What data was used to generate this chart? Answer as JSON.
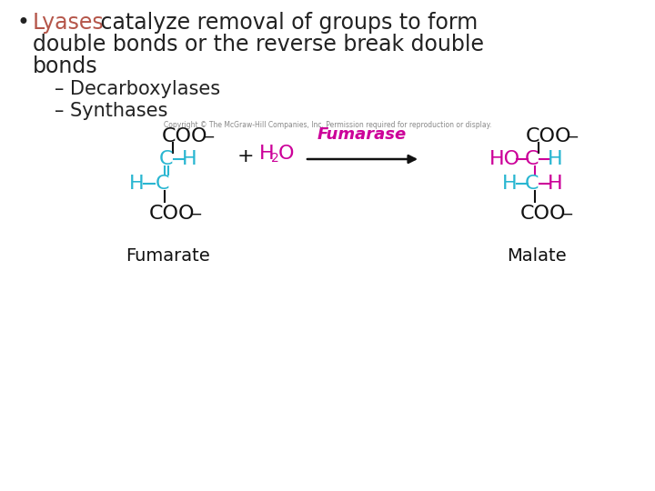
{
  "bg_color": "#ffffff",
  "bullet_color": "#222222",
  "lyases_color": "#b5564a",
  "text_color": "#222222",
  "cyan_color": "#29b6d1",
  "magenta_color": "#cc0099",
  "black_color": "#111111",
  "gray_color": "#888888",
  "lyases_word": "Lyases",
  "sub1": "– Decarboxylases",
  "sub2": "– Synthases",
  "copyright": "Copyright © The McGraw-Hill Companies, Inc. Permission required for reproduction or display.",
  "fumarate_label": "Fumarate",
  "malate_label": "Malate",
  "fumarase_label": "Fumarase"
}
